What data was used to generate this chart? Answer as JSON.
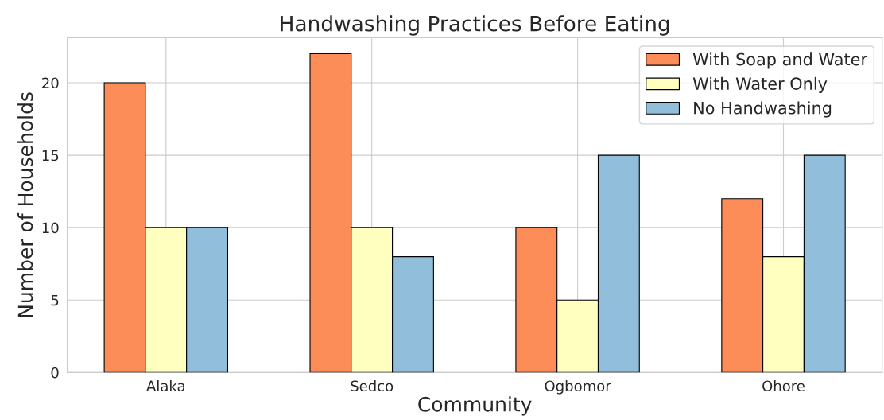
{
  "chart_data": {
    "type": "bar",
    "title": "Handwashing Practices Before Eating",
    "xlabel": "Community",
    "ylabel": "Number of Households",
    "categories": [
      "Alaka",
      "Sedco",
      "Ogbomor",
      "Ohore"
    ],
    "series": [
      {
        "name": "With Soap and Water",
        "color": "#fc8d59",
        "values": [
          20,
          22,
          10,
          12
        ]
      },
      {
        "name": "With Water Only",
        "color": "#ffffbf",
        "values": [
          10,
          10,
          5,
          8
        ]
      },
      {
        "name": "No Handwashing",
        "color": "#91bfdb",
        "values": [
          10,
          8,
          15,
          15
        ]
      }
    ],
    "ylim": [
      0,
      23.1
    ],
    "yticks": [
      0,
      5,
      10,
      15,
      20
    ],
    "grid": true,
    "legend": "top right"
  }
}
